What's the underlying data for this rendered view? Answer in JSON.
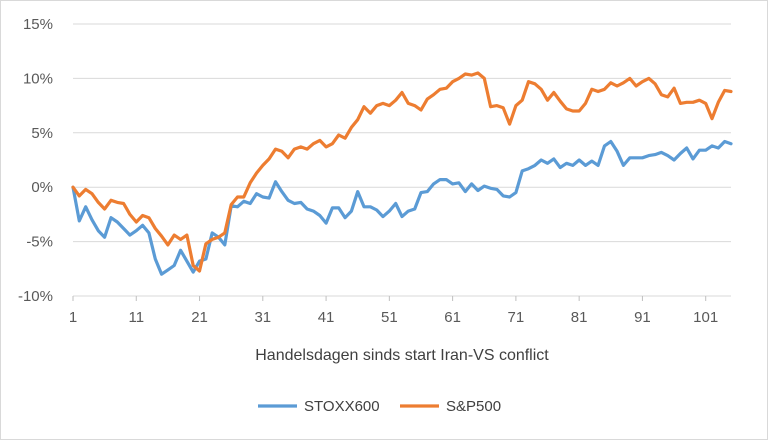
{
  "chart_data": {
    "type": "line",
    "title": "",
    "xlabel": "Handelsdagen sinds start Iran-VS conflict",
    "ylabel": "",
    "ylim": [
      -0.1,
      0.15
    ],
    "xlim": [
      1,
      105
    ],
    "x_ticks": [
      1,
      11,
      21,
      31,
      41,
      51,
      61,
      71,
      81,
      91,
      101
    ],
    "x_tick_labels": [
      "1",
      "11",
      "21",
      "31",
      "41",
      "51",
      "61",
      "71",
      "81",
      "91",
      "101"
    ],
    "y_ticks": [
      -0.1,
      -0.05,
      0,
      0.05,
      0.1,
      0.15
    ],
    "y_tick_labels": [
      "-10%",
      "-5%",
      "0%",
      "5%",
      "10%",
      "15%"
    ],
    "grid": "horizontal",
    "legend_position": "bottom",
    "series": [
      {
        "name": "STOXX600",
        "color": "#5b9bd5",
        "x": [
          1,
          2,
          3,
          4,
          5,
          6,
          7,
          8,
          9,
          10,
          11,
          12,
          13,
          14,
          15,
          16,
          17,
          18,
          19,
          20,
          21,
          22,
          23,
          24,
          25,
          26,
          27,
          28,
          29,
          30,
          31,
          32,
          33,
          34,
          35,
          36,
          37,
          38,
          39,
          40,
          41,
          42,
          43,
          44,
          45,
          46,
          47,
          48,
          49,
          50,
          51,
          52,
          53,
          54,
          55,
          56,
          57,
          58,
          59,
          60,
          61,
          62,
          63,
          64,
          65,
          66,
          67,
          68,
          69,
          70,
          71,
          72,
          73,
          74,
          75,
          76,
          77,
          78,
          79,
          80,
          81,
          82,
          83,
          84,
          85,
          86,
          87,
          88,
          89,
          90,
          91,
          92,
          93,
          94,
          95,
          96,
          97,
          98,
          99,
          100,
          101,
          102,
          103,
          104,
          105
        ],
        "values": [
          0.0,
          -0.031,
          -0.018,
          -0.03,
          -0.04,
          -0.046,
          -0.028,
          -0.032,
          -0.038,
          -0.044,
          -0.04,
          -0.035,
          -0.042,
          -0.066,
          -0.08,
          -0.076,
          -0.072,
          -0.058,
          -0.068,
          -0.078,
          -0.068,
          -0.066,
          -0.042,
          -0.046,
          -0.053,
          -0.017,
          -0.018,
          -0.013,
          -0.015,
          -0.006,
          -0.009,
          -0.01,
          0.005,
          -0.004,
          -0.012,
          -0.015,
          -0.014,
          -0.02,
          -0.022,
          -0.026,
          -0.033,
          -0.019,
          -0.019,
          -0.028,
          -0.022,
          -0.004,
          -0.018,
          -0.018,
          -0.021,
          -0.027,
          -0.022,
          -0.015,
          -0.027,
          -0.022,
          -0.02,
          -0.005,
          -0.004,
          0.003,
          0.007,
          0.007,
          0.003,
          0.004,
          -0.004,
          0.003,
          -0.003,
          0.001,
          -0.001,
          -0.002,
          -0.008,
          -0.009,
          -0.005,
          0.015,
          0.017,
          0.02,
          0.025,
          0.022,
          0.026,
          0.018,
          0.022,
          0.02,
          0.025,
          0.02,
          0.024,
          0.02,
          0.038,
          0.042,
          0.033,
          0.02,
          0.027,
          0.027,
          0.027,
          0.029,
          0.03,
          0.032,
          0.029,
          0.025,
          0.031,
          0.036,
          0.026,
          0.034,
          0.034,
          0.038,
          0.036,
          0.042,
          0.04
        ]
      },
      {
        "name": "S&P500",
        "color": "#ed7d31",
        "x": [
          1,
          2,
          3,
          4,
          5,
          6,
          7,
          8,
          9,
          10,
          11,
          12,
          13,
          14,
          15,
          16,
          17,
          18,
          19,
          20,
          21,
          22,
          23,
          24,
          25,
          26,
          27,
          28,
          29,
          30,
          31,
          32,
          33,
          34,
          35,
          36,
          37,
          38,
          39,
          40,
          41,
          42,
          43,
          44,
          45,
          46,
          47,
          48,
          49,
          50,
          51,
          52,
          53,
          54,
          55,
          56,
          57,
          58,
          59,
          60,
          61,
          62,
          63,
          64,
          65,
          66,
          67,
          68,
          69,
          70,
          71,
          72,
          73,
          74,
          75,
          76,
          77,
          78,
          79,
          80,
          81,
          82,
          83,
          84,
          85,
          86,
          87,
          88,
          89,
          90,
          91,
          92,
          93,
          94,
          95,
          96,
          97,
          98,
          99,
          100,
          101,
          102,
          103,
          104,
          105
        ],
        "values": [
          0.0,
          -0.008,
          -0.002,
          -0.006,
          -0.014,
          -0.02,
          -0.012,
          -0.014,
          -0.015,
          -0.025,
          -0.032,
          -0.026,
          -0.028,
          -0.038,
          -0.045,
          -0.053,
          -0.044,
          -0.048,
          -0.044,
          -0.072,
          -0.077,
          -0.052,
          -0.048,
          -0.046,
          -0.042,
          -0.016,
          -0.009,
          -0.009,
          0.004,
          0.013,
          0.02,
          0.026,
          0.035,
          0.033,
          0.027,
          0.035,
          0.037,
          0.035,
          0.04,
          0.043,
          0.037,
          0.04,
          0.048,
          0.045,
          0.055,
          0.062,
          0.074,
          0.068,
          0.075,
          0.077,
          0.075,
          0.08,
          0.087,
          0.077,
          0.075,
          0.071,
          0.081,
          0.085,
          0.09,
          0.091,
          0.097,
          0.1,
          0.104,
          0.103,
          0.105,
          0.1,
          0.074,
          0.075,
          0.073,
          0.058,
          0.075,
          0.08,
          0.097,
          0.095,
          0.09,
          0.08,
          0.087,
          0.079,
          0.072,
          0.07,
          0.07,
          0.077,
          0.09,
          0.088,
          0.09,
          0.096,
          0.093,
          0.096,
          0.1,
          0.093,
          0.097,
          0.1,
          0.095,
          0.085,
          0.083,
          0.091,
          0.077,
          0.078,
          0.078,
          0.08,
          0.077,
          0.063,
          0.078,
          0.089,
          0.088
        ]
      }
    ]
  }
}
